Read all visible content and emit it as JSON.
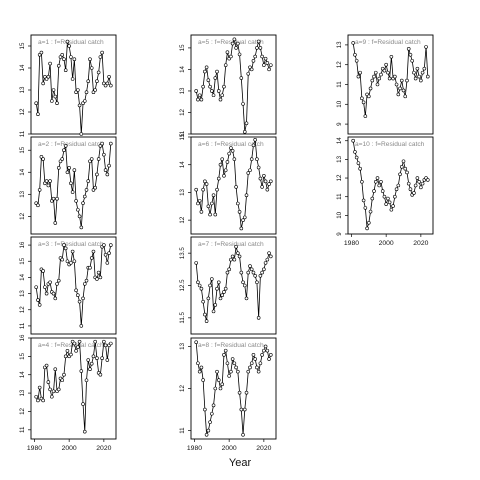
{
  "chart_data": {
    "type": "line",
    "xlabel": "Year",
    "xlim": [
      1978,
      2027
    ],
    "xticks": [
      1980,
      2000,
      2020
    ],
    "panels": [
      {
        "title": "a=1  :  f=Residual catch",
        "ylim": [
          11,
          15.5
        ],
        "yticks": [
          11,
          12,
          13,
          14,
          15
        ],
        "x": [
          1981,
          1982,
          1983,
          1984,
          1985,
          1986,
          1987,
          1988,
          1989,
          1990,
          1991,
          1992,
          1993,
          1994,
          1995,
          1996,
          1997,
          1998,
          1999,
          2000,
          2001,
          2002,
          2003,
          2004,
          2005,
          2006,
          2007,
          2008,
          2009,
          2010,
          2011,
          2012,
          2013,
          2014,
          2015,
          2016,
          2017,
          2018,
          2019,
          2020,
          2021,
          2022,
          2023,
          2024
        ],
        "values": [
          12.4,
          11.9,
          14.6,
          14.7,
          13.3,
          13.6,
          13.5,
          13.6,
          14.2,
          12.5,
          13.0,
          12.7,
          12.4,
          14.1,
          14.5,
          14.6,
          14.4,
          13.9,
          15.2,
          15.0,
          14.5,
          13.5,
          14.4,
          12.9,
          13.0,
          12.3,
          11.0,
          12.4,
          12.5,
          12.9,
          13.4,
          14.4,
          14.0,
          12.9,
          13.0,
          13.4,
          13.8,
          14.5,
          14.7,
          13.3,
          13.2,
          13.3,
          13.6,
          13.2
        ]
      },
      {
        "title": "a=2  :  f=Residual catch",
        "ylim": [
          11.2,
          15.6
        ],
        "yticks": [
          12,
          13,
          14,
          15
        ],
        "x": [
          1981,
          1982,
          1983,
          1984,
          1985,
          1986,
          1987,
          1988,
          1989,
          1990,
          1991,
          1992,
          1993,
          1994,
          1995,
          1996,
          1997,
          1998,
          1999,
          2000,
          2001,
          2002,
          2003,
          2004,
          2005,
          2006,
          2007,
          2008,
          2009,
          2010,
          2011,
          2012,
          2013,
          2014,
          2015,
          2016,
          2017,
          2018,
          2019,
          2020,
          2021,
          2022,
          2023,
          2024
        ],
        "values": [
          12.6,
          12.5,
          13.2,
          14.7,
          14.6,
          13.5,
          13.6,
          13.4,
          13.6,
          12.7,
          12.8,
          11.7,
          12.8,
          14.2,
          14.5,
          14.6,
          15.0,
          15.2,
          14.0,
          14.2,
          13.5,
          13.1,
          14.1,
          12.7,
          12.3,
          12.0,
          11.5,
          12.6,
          12.9,
          13.2,
          13.6,
          14.5,
          14.6,
          13.2,
          13.3,
          13.9,
          14.6,
          15.2,
          15.3,
          14.8,
          14.1,
          13.9,
          14.3,
          15.3
        ]
      },
      {
        "title": "a=3  :  f=Residual catch",
        "ylim": [
          10.5,
          16.5
        ],
        "yticks": [
          11,
          12,
          13,
          14,
          15,
          16
        ],
        "x": [
          1981,
          1982,
          1983,
          1984,
          1985,
          1986,
          1987,
          1988,
          1989,
          1990,
          1991,
          1992,
          1993,
          1994,
          1995,
          1996,
          1997,
          1998,
          1999,
          2000,
          2001,
          2002,
          2003,
          2004,
          2005,
          2006,
          2007,
          2008,
          2009,
          2010,
          2011,
          2012,
          2013,
          2014,
          2015,
          2016,
          2017,
          2018,
          2019,
          2020,
          2021,
          2022,
          2023,
          2024
        ],
        "values": [
          13.4,
          12.6,
          12.3,
          14.5,
          14.4,
          13.4,
          13.0,
          13.6,
          13.7,
          13.1,
          13.0,
          12.7,
          13.6,
          13.8,
          15.2,
          15.1,
          16.0,
          15.8,
          15.0,
          14.8,
          14.9,
          15.6,
          15.0,
          13.2,
          12.9,
          12.5,
          11.0,
          12.7,
          13.6,
          13.8,
          14.6,
          14.6,
          15.2,
          15.6,
          14.0,
          13.9,
          14.3,
          14.0,
          15.9,
          16.0,
          15.4,
          14.9,
          15.5,
          16.0
        ]
      },
      {
        "title": "a=4  :  f=Residual catch",
        "ylim": [
          10.5,
          16.0
        ],
        "yticks": [
          11,
          12,
          13,
          14,
          15,
          16
        ],
        "x": [
          1981,
          1982,
          1983,
          1984,
          1985,
          1986,
          1987,
          1988,
          1989,
          1990,
          1991,
          1992,
          1993,
          1994,
          1995,
          1996,
          1997,
          1998,
          1999,
          2000,
          2001,
          2002,
          2003,
          2004,
          2005,
          2006,
          2007,
          2008,
          2009,
          2010,
          2011,
          2012,
          2013,
          2014,
          2015,
          2016,
          2017,
          2018,
          2019,
          2020,
          2021,
          2022,
          2023,
          2024
        ],
        "values": [
          12.8,
          12.6,
          13.3,
          12.7,
          12.6,
          14.4,
          14.5,
          13.6,
          13.2,
          12.8,
          13.1,
          14.3,
          13.1,
          13.2,
          13.8,
          13.7,
          14.0,
          15.0,
          15.3,
          15.0,
          15.1,
          15.8,
          15.7,
          15.3,
          15.5,
          15.8,
          14.2,
          12.4,
          10.9,
          13.7,
          14.8,
          14.3,
          14.6,
          15.0,
          15.8,
          14.9,
          14.1,
          14.0,
          14.9,
          15.8,
          15.6,
          14.8,
          15.6,
          15.7
        ]
      },
      {
        "title": "a=5  :  f=Residual catch",
        "ylim": [
          11.0,
          15.6
        ],
        "yticks": [
          11,
          12,
          13,
          14,
          15
        ],
        "x": [
          1981,
          1982,
          1983,
          1984,
          1985,
          1986,
          1987,
          1988,
          1989,
          1990,
          1991,
          1992,
          1993,
          1994,
          1995,
          1996,
          1997,
          1998,
          1999,
          2000,
          2001,
          2002,
          2003,
          2004,
          2005,
          2006,
          2007,
          2008,
          2009,
          2010,
          2011,
          2012,
          2013,
          2014,
          2015,
          2016,
          2017,
          2018,
          2019,
          2020,
          2021,
          2022,
          2023,
          2024
        ],
        "values": [
          13.0,
          12.6,
          12.8,
          12.6,
          13.2,
          13.9,
          14.1,
          13.5,
          13.2,
          13.0,
          12.8,
          13.6,
          13.9,
          13.0,
          12.6,
          12.8,
          13.2,
          14.2,
          14.8,
          14.5,
          14.6,
          15.2,
          15.4,
          15.0,
          15.2,
          14.7,
          13.6,
          12.4,
          11.1,
          11.5,
          13.8,
          14.1,
          14.0,
          14.4,
          14.6,
          15.0,
          15.3,
          15.0,
          14.6,
          14.2,
          14.5,
          14.3,
          14.0,
          14.2
        ]
      },
      {
        "title": "a=6  :  f=Residual catch",
        "ylim": [
          11.5,
          15.0
        ],
        "yticks": [
          12.0,
          13.0,
          14.0,
          15.0
        ],
        "x": [
          1981,
          1982,
          1983,
          1984,
          1985,
          1986,
          1987,
          1988,
          1989,
          1990,
          1991,
          1992,
          1993,
          1994,
          1995,
          1996,
          1997,
          1998,
          1999,
          2000,
          2001,
          2002,
          2003,
          2004,
          2005,
          2006,
          2007,
          2008,
          2009,
          2010,
          2011,
          2012,
          2013,
          2014,
          2015,
          2016,
          2017,
          2018,
          2019,
          2020,
          2021,
          2022,
          2023,
          2024
        ],
        "values": [
          13.1,
          12.6,
          12.7,
          12.3,
          13.1,
          13.4,
          13.3,
          12.5,
          12.2,
          12.6,
          12.9,
          12.2,
          13.1,
          13.5,
          14.0,
          14.2,
          13.6,
          13.8,
          14.1,
          14.4,
          14.6,
          14.5,
          14.2,
          13.2,
          12.6,
          12.3,
          11.7,
          12.0,
          12.1,
          12.9,
          13.7,
          13.8,
          14.2,
          14.7,
          14.9,
          14.2,
          13.9,
          13.5,
          13.2,
          13.6,
          13.4,
          13.1,
          13.3,
          13.4
        ]
      },
      {
        "title": "a=7  :  f=Residual catch",
        "ylim": [
          11.0,
          14.0
        ],
        "yticks": [
          11.5,
          12.5,
          13.5
        ],
        "x": [
          1981,
          1982,
          1983,
          1984,
          1985,
          1986,
          1987,
          1988,
          1989,
          1990,
          1991,
          1992,
          1993,
          1994,
          1995,
          1996,
          1997,
          1998,
          1999,
          2000,
          2001,
          2002,
          2003,
          2004,
          2005,
          2006,
          2007,
          2008,
          2009,
          2010,
          2011,
          2012,
          2013,
          2014,
          2015,
          2016,
          2017,
          2018,
          2019,
          2020,
          2021,
          2022,
          2023,
          2024
        ],
        "values": [
          13.2,
          12.6,
          12.5,
          12.4,
          12.0,
          11.6,
          11.4,
          12.1,
          12.5,
          12.7,
          11.7,
          11.9,
          12.4,
          12.6,
          12.1,
          12.2,
          12.3,
          12.4,
          12.9,
          13.0,
          13.3,
          13.4,
          13.3,
          13.7,
          13.5,
          13.4,
          12.9,
          12.6,
          12.5,
          12.1,
          12.9,
          13.1,
          13.0,
          12.9,
          12.8,
          12.6,
          11.5,
          12.8,
          12.9,
          13.0,
          13.2,
          13.3,
          13.5,
          13.4
        ]
      },
      {
        "title": "a=8  :  f=Residual catch",
        "ylim": [
          10.8,
          13.2
        ],
        "yticks": [
          11.0,
          12.0,
          13.0
        ],
        "x": [
          1981,
          1982,
          1983,
          1984,
          1985,
          1986,
          1987,
          1988,
          1989,
          1990,
          1991,
          1992,
          1993,
          1994,
          1995,
          1996,
          1997,
          1998,
          1999,
          2000,
          2001,
          2002,
          2003,
          2004,
          2005,
          2006,
          2007,
          2008,
          2009,
          2010,
          2011,
          2012,
          2013,
          2014,
          2015,
          2016,
          2017,
          2018,
          2019,
          2020,
          2021,
          2022,
          2023,
          2024
        ],
        "values": [
          13.1,
          12.6,
          12.4,
          12.5,
          12.2,
          11.5,
          10.9,
          11.0,
          11.2,
          11.4,
          11.6,
          12.0,
          12.4,
          12.2,
          12.0,
          12.1,
          12.8,
          12.9,
          12.6,
          12.3,
          12.4,
          12.7,
          12.6,
          12.5,
          12.4,
          11.9,
          11.5,
          10.9,
          11.5,
          11.9,
          12.4,
          12.5,
          12.6,
          12.8,
          12.7,
          12.5,
          12.4,
          12.6,
          12.8,
          12.9,
          13.0,
          12.9,
          12.7,
          12.8
        ]
      },
      {
        "title": "a=9  :  f=Residual catch",
        "ylim": [
          8.5,
          13.5
        ],
        "yticks": [
          9,
          10,
          11,
          12,
          13
        ],
        "x": [
          1981,
          1982,
          1983,
          1984,
          1985,
          1986,
          1987,
          1988,
          1989,
          1990,
          1991,
          1992,
          1993,
          1994,
          1995,
          1996,
          1997,
          1998,
          1999,
          2000,
          2001,
          2002,
          2003,
          2004,
          2005,
          2006,
          2007,
          2008,
          2009,
          2010,
          2011,
          2012,
          2013,
          2014,
          2015,
          2016,
          2017,
          2018,
          2019,
          2020,
          2021,
          2022,
          2023,
          2024
        ],
        "values": [
          13.1,
          12.5,
          12.2,
          11.4,
          11.6,
          10.3,
          10.1,
          9.4,
          10.5,
          10.4,
          10.8,
          11.2,
          11.4,
          11.6,
          11.0,
          11.3,
          11.5,
          11.8,
          11.7,
          12.0,
          11.6,
          11.3,
          12.4,
          11.3,
          11.4,
          11.0,
          10.5,
          10.8,
          11.2,
          10.7,
          10.4,
          11.2,
          12.8,
          12.5,
          12.2,
          11.6,
          11.3,
          11.8,
          11.4,
          11.2,
          11.6,
          11.8,
          12.9,
          11.4
        ]
      },
      {
        "title": "a=10  :  f=Residual catch",
        "ylim": [
          9,
          14.2
        ],
        "yticks": [
          9,
          10,
          11,
          12,
          13,
          14
        ],
        "x": [
          1981,
          1982,
          1983,
          1984,
          1985,
          1986,
          1987,
          1988,
          1989,
          1990,
          1991,
          1992,
          1993,
          1994,
          1995,
          1996,
          1997,
          1998,
          1999,
          2000,
          2001,
          2002,
          2003,
          2004,
          2005,
          2006,
          2007,
          2008,
          2009,
          2010,
          2011,
          2012,
          2013,
          2014,
          2015,
          2016,
          2017,
          2018,
          2019,
          2020,
          2021,
          2022,
          2023,
          2024
        ],
        "values": [
          14.0,
          13.4,
          13.1,
          12.8,
          12.5,
          11.8,
          10.8,
          10.4,
          9.3,
          9.6,
          10.2,
          10.9,
          11.3,
          11.8,
          12.0,
          11.6,
          11.8,
          11.3,
          11.0,
          10.6,
          10.9,
          10.7,
          10.3,
          10.5,
          11.0,
          11.4,
          11.6,
          12.2,
          12.6,
          12.9,
          12.5,
          12.3,
          11.7,
          11.4,
          11.1,
          11.2,
          11.6,
          12.0,
          11.8,
          11.5,
          11.7,
          11.9,
          12.0,
          11.9
        ]
      }
    ]
  }
}
